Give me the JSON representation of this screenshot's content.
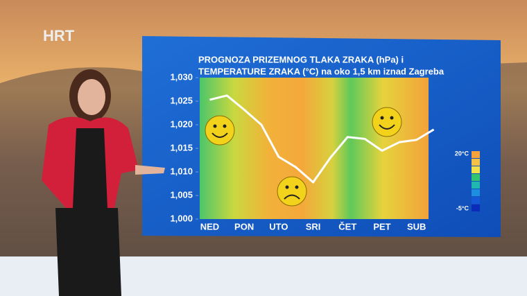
{
  "brand": "HRT",
  "chart_data": {
    "type": "line",
    "title": [
      "PROGNOZA PRIZEMNOG TLAKA ZRAKA (hPa) i",
      "TEMPERATURE ZRAKA (°C) na oko 1,5 km iznad Zagreba"
    ],
    "categories": [
      "NED",
      null,
      "PON",
      null,
      "UTO",
      null,
      "SRI",
      null,
      "ČET",
      null,
      "PET",
      null,
      "SUB",
      null
    ],
    "values": [
      1025.3,
      1026.2,
      1023.2,
      1020,
      1013.2,
      1011,
      1007.8,
      1013,
      1017.4,
      1017,
      1014.5,
      1016.3,
      1016.8,
      1019
    ],
    "color": "#ffffff",
    "ylim": [
      1000,
      1030
    ],
    "yticks": [
      {
        "value": 1000,
        "label": "1,000"
      },
      {
        "value": 1005,
        "label": "1,005"
      },
      {
        "value": 1010,
        "label": "1,010"
      },
      {
        "value": 1015,
        "label": "1,015"
      },
      {
        "value": 1020,
        "label": "1,020"
      },
      {
        "value": 1025,
        "label": "1,025"
      },
      {
        "value": 1030,
        "label": "1,030"
      }
    ],
    "temperature_legend": {
      "labels": [
        "20°C",
        "-5°C"
      ],
      "colors": [
        "#f7a23a",
        "#f4c046",
        "#f0e04a",
        "#33c46f",
        "#1fb7b0",
        "#1e8fe0",
        "#1458d8",
        "#0a2cb8"
      ]
    }
  }
}
